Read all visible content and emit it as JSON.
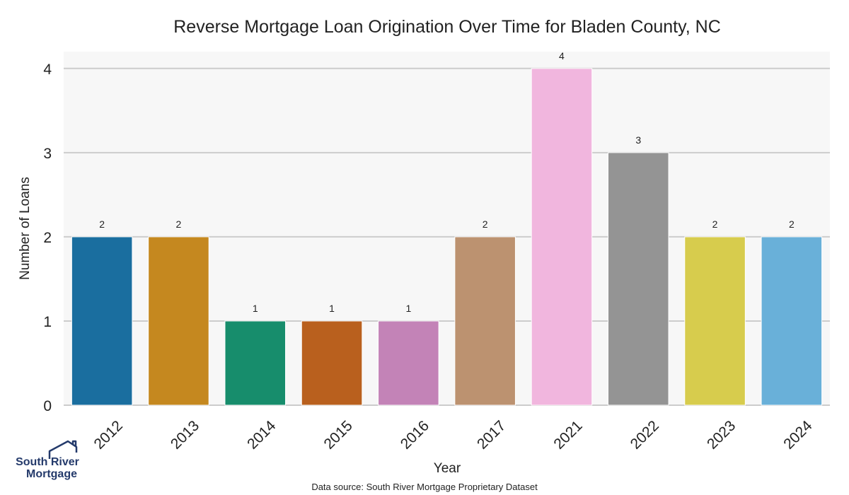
{
  "chart_data": {
    "type": "bar",
    "title": "Reverse Mortgage Loan Origination Over Time for Bladen County, NC",
    "xlabel": "Year",
    "ylabel": "Number of Loans",
    "categories": [
      "2012",
      "2013",
      "2014",
      "2015",
      "2016",
      "2017",
      "2021",
      "2022",
      "2023",
      "2024"
    ],
    "values": [
      2,
      2,
      1,
      1,
      1,
      2,
      4,
      3,
      2,
      2
    ],
    "colors": [
      "#1a6e9f",
      "#c5881f",
      "#178d6c",
      "#b9601e",
      "#c383b7",
      "#bc9270",
      "#f1b6de",
      "#949494",
      "#d7cc4d",
      "#69b0d9"
    ],
    "ylim": [
      0,
      4.2
    ],
    "yticks": [
      0,
      1,
      2,
      3,
      4
    ],
    "grid": true,
    "background": "#f7f7f7",
    "gridline_color": "#cccccc"
  },
  "source_note": "Data source: South River Mortgage Proprietary Dataset",
  "logo": {
    "line1": "South River",
    "line2": "Mortgage",
    "icon": "house-outline-icon",
    "color": "#243a6b"
  }
}
